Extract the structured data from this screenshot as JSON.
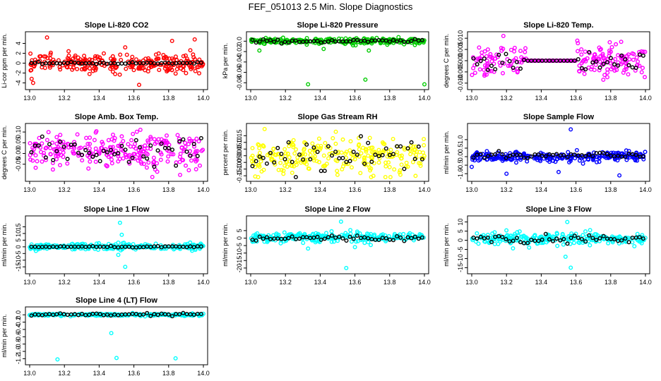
{
  "title": "FEF_051013  2.5 Min. Slope Diagnostics",
  "chart_data": [
    {
      "type": "scatter",
      "title": "Slope Li-820 CO2",
      "ylabel": "Li-cor ppm per min.",
      "color": "#ff0000",
      "xlim": [
        13.0,
        14.0
      ],
      "ylim": [
        -4.5,
        5.5
      ],
      "xticks": [
        "13.0",
        "13.2",
        "13.4",
        "13.6",
        "13.8",
        "14.0"
      ],
      "yticks": [
        -4,
        -2,
        0,
        2,
        4
      ],
      "ytick_labels": [
        "-4",
        "-2",
        "0",
        "2",
        "4"
      ],
      "series": [
        {
          "name": "all",
          "spread": 1.3,
          "base": 0.0,
          "outliers": [
            [
              13.1,
              5.2
            ],
            [
              13.82,
              4.5
            ],
            [
              13.95,
              4.8
            ],
            [
              13.63,
              -4.4
            ],
            [
              13.02,
              -4.0
            ],
            [
              13.55,
              3.2
            ]
          ]
        },
        {
          "name": "selected",
          "spread": 0.12,
          "base": 0.0
        }
      ]
    },
    {
      "type": "scatter",
      "title": "Slope Li-820 Pressure",
      "ylabel": "kPa per min.",
      "color": "#00cc00",
      "xlim": [
        13.0,
        14.0
      ],
      "ylim": [
        -0.085,
        0.01
      ],
      "xticks": [
        "13.0",
        "13.2",
        "13.4",
        "13.6",
        "13.8",
        "14.0"
      ],
      "yticks": [
        -0.08,
        -0.06,
        -0.04,
        -0.02,
        0.0
      ],
      "ytick_labels": [
        "-0.08",
        "-0.06",
        "-0.04",
        "-0.02",
        "0.0"
      ],
      "series": [
        {
          "name": "all",
          "spread": 0.004,
          "base": 0.0,
          "outliers": [
            [
              13.33,
              -0.083
            ],
            [
              13.66,
              -0.074
            ],
            [
              14.0,
              -0.083
            ],
            [
              13.05,
              -0.018
            ],
            [
              13.42,
              -0.015
            ],
            [
              13.68,
              -0.018
            ]
          ]
        },
        {
          "name": "selected",
          "spread": 0.002,
          "base": 0.0
        }
      ]
    },
    {
      "type": "scatter",
      "title": "Slope Li-820 Temp.",
      "ylabel": "degrees C per min.",
      "color": "#ff00ff",
      "xlim": [
        13.0,
        14.0
      ],
      "ylim": [
        -0.011,
        0.011
      ],
      "xticks": [
        "13.0",
        "13.2",
        "13.4",
        "13.6",
        "13.8",
        "14.0"
      ],
      "yticks": [
        -0.01,
        -0.005,
        0.0,
        0.005,
        0.01
      ],
      "ytick_labels": [
        "-0.010",
        "-0.005",
        "0.000",
        "0.005",
        "0.010"
      ],
      "gap": [
        13.32,
        13.6
      ],
      "series": [
        {
          "name": "all",
          "spread": 0.005,
          "base": 0.0,
          "outliers": []
        },
        {
          "name": "selected",
          "spread": 0.003,
          "base": 0.0
        }
      ]
    },
    {
      "type": "scatter",
      "title": "Slope Amb. Box Temp.",
      "ylabel": "degrees C per min.",
      "color": "#ff00ff",
      "xlim": [
        13.0,
        14.0
      ],
      "ylim": [
        -0.11,
        0.12
      ],
      "xticks": [
        "13.0",
        "13.2",
        "13.4",
        "13.6",
        "13.8",
        "14.0"
      ],
      "yticks": [
        -0.05,
        0.0,
        0.05,
        0.1
      ],
      "ytick_labels": [
        "-0.05",
        "0.00",
        "0.05",
        "0.10"
      ],
      "series": [
        {
          "name": "all",
          "spread": 0.06,
          "base": 0.01,
          "outliers": []
        },
        {
          "name": "selected",
          "spread": 0.04,
          "base": 0.01
        }
      ]
    },
    {
      "type": "scatter",
      "title": "Slope Gas Stream RH",
      "ylabel": "percent per min.",
      "color": "#ffff00",
      "xlim": [
        13.0,
        14.0
      ],
      "ylim": [
        -0.16,
        0.21
      ],
      "xticks": [
        "13.0",
        "13.2",
        "13.4",
        "13.6",
        "13.8",
        "14.0"
      ],
      "yticks": [
        -0.15,
        -0.1,
        -0.05,
        0.0,
        0.05,
        0.1,
        0.15
      ],
      "ytick_labels": [
        "-0.15",
        "-0.10",
        "-0.05",
        "0.00",
        "0.05",
        "0.10",
        "0.15"
      ],
      "series": [
        {
          "name": "all",
          "spread": 0.09,
          "base": -0.01,
          "outliers": [
            [
              13.08,
              0.2
            ],
            [
              13.49,
              0.18
            ]
          ]
        },
        {
          "name": "selected",
          "spread": 0.07,
          "base": 0.0
        }
      ]
    },
    {
      "type": "scatter",
      "title": "Slope Sample Flow",
      "ylabel": "ml/min per min.",
      "color": "#0000ff",
      "xlim": [
        13.0,
        14.0
      ],
      "ylim": [
        -1.2,
        1.7
      ],
      "xticks": [
        "13.0",
        "13.2",
        "13.4",
        "13.6",
        "13.8",
        "14.0"
      ],
      "yticks": [
        -1.0,
        -0.5,
        0.0,
        0.5,
        1.0
      ],
      "ytick_labels": [
        "-1.0",
        "-0.5",
        "0.0",
        "0.5",
        "1.0"
      ],
      "series": [
        {
          "name": "all",
          "spread": 0.2,
          "base": 0.0,
          "outliers": [
            [
              13.57,
              1.6
            ],
            [
              13.5,
              -0.9
            ],
            [
              13.2,
              -1.0
            ],
            [
              13.85,
              -1.1
            ],
            [
              13.0,
              -0.6
            ]
          ]
        },
        {
          "name": "selected",
          "spread": 0.12,
          "base": 0.05
        }
      ]
    },
    {
      "type": "scatter",
      "title": "Slope Line 1 Flow",
      "ylabel": "ml/min per min.",
      "color": "#00ffff",
      "xlim": [
        13.0,
        14.0
      ],
      "ylim": [
        -17,
        20
      ],
      "xticks": [
        "13.0",
        "13.2",
        "13.4",
        "13.6",
        "13.8",
        "14.0"
      ],
      "yticks": [
        -15,
        -10,
        -5,
        0,
        5,
        10,
        15
      ],
      "ytick_labels": [
        "-15",
        "-10",
        "-5",
        "0",
        "5",
        "10",
        "15"
      ],
      "series": [
        {
          "name": "all",
          "spread": 1.8,
          "base": 0.0,
          "outliers": [
            [
              13.52,
              18
            ],
            [
              13.55,
              -15
            ],
            [
              13.53,
              9
            ],
            [
              13.51,
              -6
            ]
          ]
        },
        {
          "name": "selected",
          "spread": 0.3,
          "base": 0.0
        }
      ]
    },
    {
      "type": "scatter",
      "title": "Slope Line 2 Flow",
      "ylabel": "ml/min per min.",
      "color": "#00ffff",
      "xlim": [
        13.0,
        14.0
      ],
      "ylim": [
        -21,
        12
      ],
      "xticks": [
        "13.0",
        "13.2",
        "13.4",
        "13.6",
        "13.8",
        "14.0"
      ],
      "yticks": [
        -20,
        -15,
        -10,
        -5,
        0,
        5
      ],
      "ytick_labels": [
        "-20",
        "-15",
        "-10",
        "-5",
        "0",
        "5"
      ],
      "series": [
        {
          "name": "all",
          "spread": 2.2,
          "base": 0.5,
          "outliers": [
            [
              13.55,
              -20
            ],
            [
              13.52,
              11
            ],
            [
              13.33,
              -7
            ],
            [
              13.6,
              -6
            ]
          ]
        },
        {
          "name": "selected",
          "spread": 1.2,
          "base": 0.0
        }
      ]
    },
    {
      "type": "scatter",
      "title": "Slope Line 3 Flow",
      "ylabel": "ml/min per min.",
      "color": "#00ffff",
      "xlim": [
        13.0,
        14.0
      ],
      "ylim": [
        -16,
        11
      ],
      "xticks": [
        "13.0",
        "13.2",
        "13.4",
        "13.6",
        "13.8",
        "14.0"
      ],
      "yticks": [
        -15,
        -10,
        -5,
        0,
        5,
        10
      ],
      "ytick_labels": [
        "-15",
        "-10",
        "-5",
        "0",
        "5",
        "10"
      ],
      "series": [
        {
          "name": "all",
          "spread": 2.3,
          "base": 1.0,
          "outliers": [
            [
              13.57,
              -15
            ],
            [
              13.55,
              10
            ],
            [
              13.54,
              -9
            ],
            [
              13.33,
              -4
            ]
          ]
        },
        {
          "name": "selected",
          "spread": 1.4,
          "base": 0.5
        }
      ]
    },
    {
      "type": "scatter",
      "title": "Slope Line 4 (LT) Flow",
      "ylabel": "ml/min per min.",
      "color": "#00ffff",
      "xlim": [
        13.0,
        14.0
      ],
      "ylim": [
        -1.25,
        0.1
      ],
      "xticks": [
        "13.0",
        "13.2",
        "13.4",
        "13.6",
        "13.8",
        "14.0"
      ],
      "yticks": [
        -1.2,
        -1.0,
        -0.8,
        -0.6,
        -0.4,
        -0.2,
        0.0
      ],
      "ytick_labels": [
        "-1.2",
        "-1.0",
        "-0.8",
        "-0.6",
        "-0.4",
        "-0.2",
        "0.0"
      ],
      "series": [
        {
          "name": "all",
          "spread": 0.02,
          "base": 0.0,
          "outliers": [
            [
              13.16,
              -1.22
            ],
            [
              13.5,
              -1.18
            ],
            [
              13.84,
              -1.19
            ],
            [
              13.47,
              -0.5
            ]
          ]
        },
        {
          "name": "selected",
          "spread": 0.02,
          "base": 0.01
        }
      ]
    }
  ]
}
